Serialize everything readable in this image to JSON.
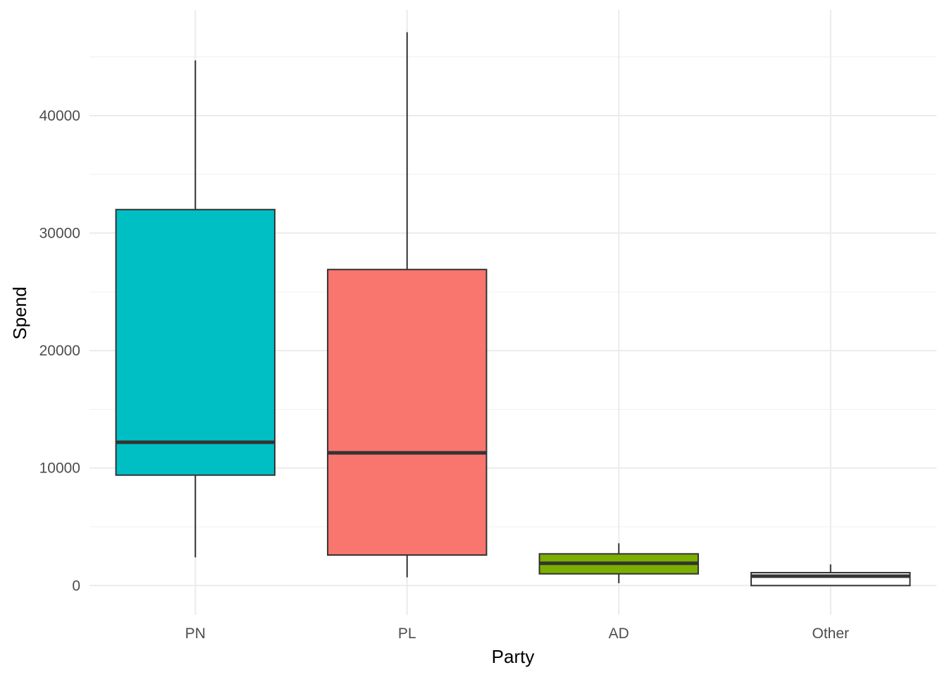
{
  "chart_data": {
    "type": "boxplot",
    "title": "",
    "xlabel": "Party",
    "ylabel": "Spend",
    "categories": [
      "PN",
      "PL",
      "AD",
      "Other"
    ],
    "ylim": [
      -2500,
      49000
    ],
    "y_ticks": [
      0,
      10000,
      20000,
      30000,
      40000
    ],
    "y_tick_labels": [
      "0",
      "10000",
      "20000",
      "30000",
      "40000"
    ],
    "grid": true,
    "legend": "none",
    "boxes": [
      {
        "category": "PN",
        "min": 2400,
        "q1": 9400,
        "median": 12200,
        "q3": 32000,
        "max": 44700,
        "color": "#00BFC4"
      },
      {
        "category": "PL",
        "min": 700,
        "q1": 2600,
        "median": 11300,
        "q3": 26900,
        "max": 47100,
        "color": "#F8766D"
      },
      {
        "category": "AD",
        "min": 200,
        "q1": 1000,
        "median": 1900,
        "q3": 2700,
        "max": 3600,
        "color": "#7CAE00"
      },
      {
        "category": "Other",
        "min": 0,
        "q1": 0,
        "median": 800,
        "q3": 1100,
        "max": 1800,
        "color": "#FFFFFF"
      }
    ]
  }
}
